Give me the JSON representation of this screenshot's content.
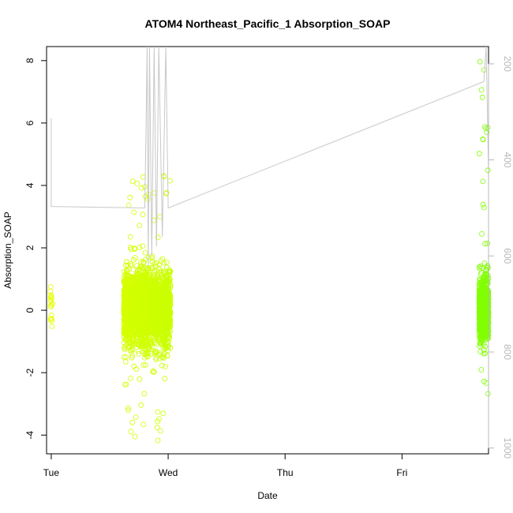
{
  "chart_data": {
    "type": "scatter",
    "title": "ATOM4 Northeast_Pacific_1 Absorption_SOAP",
    "xlabel": "Date",
    "ylabel": "Absorption_SOAP",
    "x_tick_labels": [
      "Tue",
      "Wed",
      "Thu",
      "Fri"
    ],
    "x_tick_values": [
      0,
      1,
      2,
      3
    ],
    "xlim": [
      -0.04,
      3.74
    ],
    "ylim": [
      -4.6,
      8.45
    ],
    "y_ticks": [
      -4,
      -2,
      0,
      2,
      4,
      6,
      8
    ],
    "y2_ticks": [
      200,
      400,
      600,
      800,
      1000
    ],
    "y2_lim": [
      1012,
      164
    ],
    "y2_reversed": true,
    "grid": false,
    "legend": "none",
    "series": [
      {
        "color_start": "#e5ff00",
        "color_end": "#80ff00",
        "clusters": [
          {
            "x_center": 0.0,
            "x_spread": 0.01,
            "y_mean": 0.2,
            "y_sd": 0.45,
            "y_min": -0.75,
            "y_max": 1.05,
            "n": 18
          },
          {
            "x_center": 0.82,
            "x_spread": 0.2,
            "y_mean": 0.05,
            "y_sd": 0.6,
            "y_min": -4.2,
            "y_max": 4.5,
            "n": 2600
          },
          {
            "x_center": 3.7,
            "x_spread": 0.04,
            "y_mean": 0.0,
            "y_sd": 0.5,
            "y_min": -3.1,
            "y_max": 8.0,
            "n": 800
          }
        ]
      },
      {
        "type": "line",
        "axis": "right",
        "color": "#c8c8c8",
        "x": [
          0.0,
          0.0,
          0.8,
          0.81,
          0.82,
          0.83,
          0.84,
          0.86,
          0.88,
          0.9,
          0.92,
          0.95,
          0.98,
          1.0,
          3.7,
          3.72,
          3.74
        ],
        "y": [
          313,
          497,
          500,
          350,
          164,
          620,
          164,
          600,
          164,
          580,
          164,
          560,
          164,
          500,
          237,
          164,
          420
        ]
      }
    ]
  }
}
